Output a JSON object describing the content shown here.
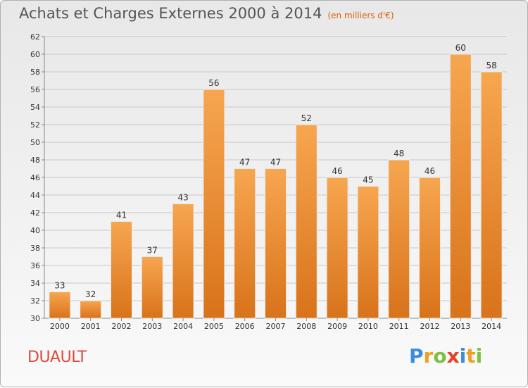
{
  "chart_data": {
    "type": "bar",
    "title": "Achats et Charges Externes 2000 à 2014",
    "subtitle": "(en milliers d'€)",
    "categories": [
      "2000",
      "2001",
      "2002",
      "2003",
      "2004",
      "2005",
      "2006",
      "2007",
      "2008",
      "2009",
      "2010",
      "2011",
      "2012",
      "2013",
      "2014"
    ],
    "values": [
      33,
      32,
      41,
      37,
      43,
      56,
      47,
      47,
      52,
      46,
      45,
      48,
      46,
      60,
      58
    ],
    "ylim": [
      30,
      62
    ],
    "ytick_step": 2,
    "grid": true,
    "bar_color_top": "#f7a650",
    "bar_color_bottom": "#d8731a"
  },
  "commune": "DUAULT",
  "logo": {
    "letters": [
      "P",
      "r",
      "o",
      "x",
      "i",
      "t",
      "i"
    ],
    "colors": [
      "#3a8fd8",
      "#f0a020",
      "#7cc142",
      "#e8402a",
      "#3a8fd8",
      "#f0a020",
      "#7cc142"
    ]
  }
}
